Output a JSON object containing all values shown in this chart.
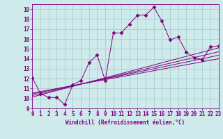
{
  "xlabel": "Windchill (Refroidissement éolien,°C)",
  "bg_color": "#ceeaea",
  "line_color": "#800080",
  "grid_color": "#aacece",
  "xlim": [
    0,
    23
  ],
  "ylim": [
    9,
    19.5
  ],
  "xticks": [
    0,
    1,
    2,
    3,
    4,
    5,
    6,
    7,
    8,
    9,
    10,
    11,
    12,
    13,
    14,
    15,
    16,
    17,
    18,
    19,
    20,
    21,
    22,
    23
  ],
  "yticks": [
    9,
    10,
    11,
    12,
    13,
    14,
    15,
    16,
    17,
    18,
    19
  ],
  "series": [
    [
      0,
      12.1
    ],
    [
      1,
      10.5
    ],
    [
      2,
      10.1
    ],
    [
      3,
      10.1
    ],
    [
      4,
      9.4
    ],
    [
      5,
      11.4
    ],
    [
      6,
      11.8
    ],
    [
      7,
      13.6
    ],
    [
      8,
      14.4
    ],
    [
      9,
      11.8
    ],
    [
      10,
      16.6
    ],
    [
      11,
      16.6
    ],
    [
      12,
      17.5
    ],
    [
      13,
      18.4
    ],
    [
      14,
      18.4
    ],
    [
      15,
      19.2
    ],
    [
      16,
      17.8
    ],
    [
      17,
      15.9
    ],
    [
      18,
      16.2
    ],
    [
      19,
      14.7
    ],
    [
      20,
      14.1
    ],
    [
      21,
      13.9
    ],
    [
      22,
      15.2
    ],
    [
      23,
      15.3
    ]
  ],
  "linear_lines": [
    {
      "x0": 0,
      "y0": 10.15,
      "x1": 23,
      "y1": 15.1
    },
    {
      "x0": 0,
      "y0": 10.3,
      "x1": 23,
      "y1": 14.7
    },
    {
      "x0": 0,
      "y0": 10.45,
      "x1": 23,
      "y1": 14.35
    },
    {
      "x0": 0,
      "y0": 10.55,
      "x1": 23,
      "y1": 14.0
    }
  ]
}
